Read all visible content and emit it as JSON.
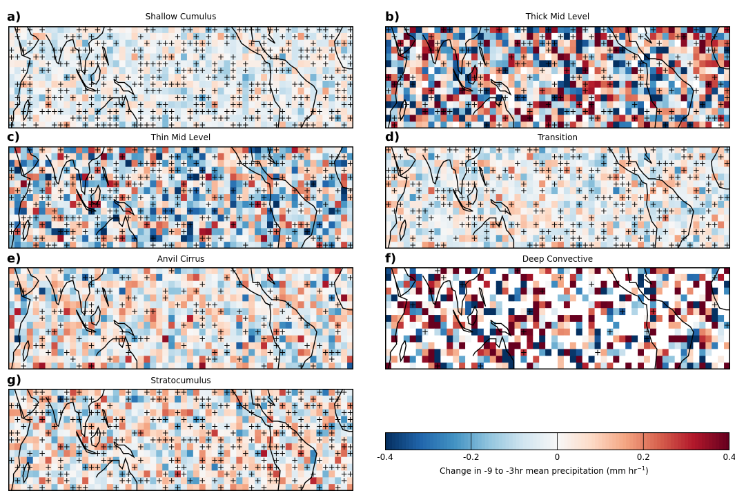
{
  "chart_data": {
    "type": "heatmap",
    "colormap": "RdBu_r",
    "vmin": -0.4,
    "vmax": 0.4,
    "stipple_marker": "+",
    "panels": [
      {
        "letter": "a)",
        "title": "Shallow Cumulus",
        "seed": 11,
        "spread": 0.07,
        "stipple": 0.45,
        "missing": 0.0,
        "bias": -0.02
      },
      {
        "letter": "b)",
        "title": "Thick Mid Level",
        "seed": 23,
        "spread": 0.26,
        "stipple": 0.2,
        "missing": 0.04,
        "bias": -0.02
      },
      {
        "letter": "c)",
        "title": "Thin Mid Level",
        "seed": 37,
        "spread": 0.17,
        "stipple": 0.28,
        "missing": 0.0,
        "bias": -0.04
      },
      {
        "letter": "d)",
        "title": "Transition",
        "seed": 41,
        "spread": 0.09,
        "stipple": 0.3,
        "missing": 0.0,
        "bias": -0.01
      },
      {
        "letter": "e)",
        "title": "Anvil Cirrus",
        "seed": 53,
        "spread": 0.13,
        "stipple": 0.14,
        "missing": 0.0,
        "bias": 0.0
      },
      {
        "letter": "f)",
        "title": "Deep Convective",
        "seed": 67,
        "spread": 0.38,
        "stipple": 0.04,
        "missing": 0.45,
        "bias": 0.03
      },
      {
        "letter": "g)",
        "title": "Stratocumulus",
        "seed": 79,
        "spread": 0.12,
        "stipple": 0.33,
        "missing": 0.0,
        "bias": 0.01
      }
    ],
    "colorbar": {
      "ticks": [
        "-0.4",
        "-0.2",
        "0",
        "0.2",
        "0.4"
      ],
      "label": "Change in -9 to -3hr mean precipitation (mm hr"
    }
  }
}
